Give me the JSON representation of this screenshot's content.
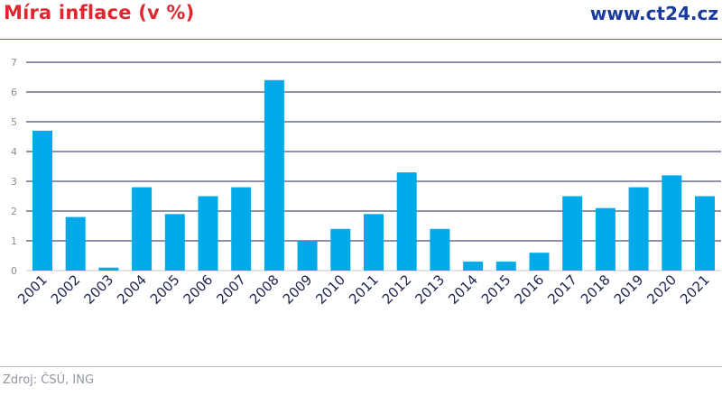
{
  "header": {
    "title": "Míra inflace (v %)",
    "brand": "www.ct24.cz"
  },
  "footer": {
    "source": "Zdroj: ČSÚ, ING"
  },
  "colors": {
    "bar": "#00aae8",
    "title": "#e0262e",
    "brand": "#1a3aa0",
    "grid": "#1d2450"
  },
  "chart_data": {
    "type": "bar",
    "title": "Míra inflace (v %)",
    "xlabel": "",
    "ylabel": "",
    "ylim": [
      0,
      7
    ],
    "yticks": [
      0,
      1,
      2,
      3,
      4,
      5,
      6,
      7
    ],
    "grid": true,
    "categories": [
      "2001",
      "2002",
      "2003",
      "2004",
      "2005",
      "2006",
      "2007",
      "2008",
      "2009",
      "2010",
      "2011",
      "2012",
      "2013",
      "2014",
      "2015",
      "2016",
      "2017",
      "2018",
      "2019",
      "2020",
      "2021"
    ],
    "values": [
      4.7,
      1.8,
      0.1,
      2.8,
      1.9,
      2.5,
      2.8,
      6.4,
      1.0,
      1.4,
      1.9,
      3.3,
      1.4,
      0.3,
      0.3,
      0.6,
      2.5,
      2.1,
      2.8,
      3.2,
      2.5
    ]
  }
}
